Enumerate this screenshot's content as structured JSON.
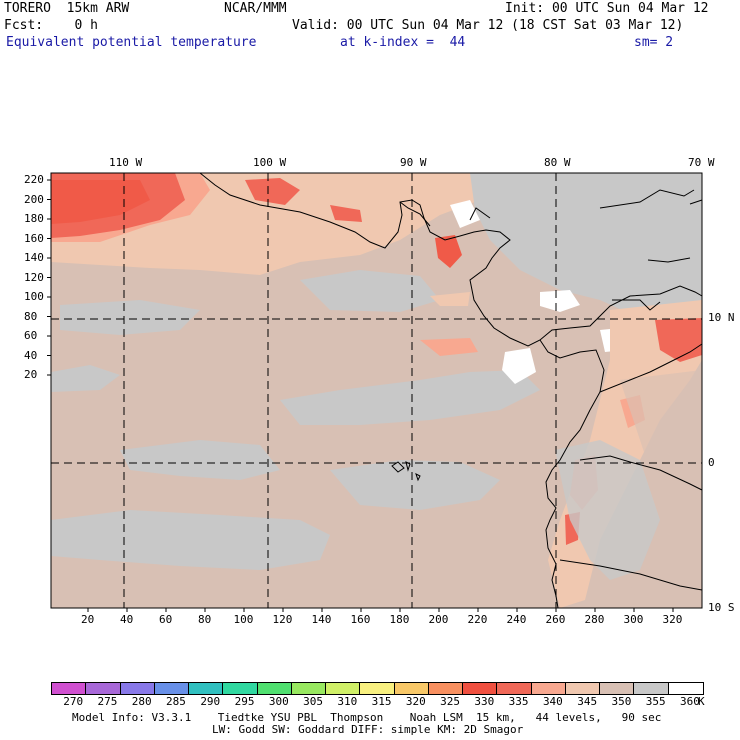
{
  "header": {
    "model": "TORERO  15km ARW",
    "center": "NCAR/MMM",
    "init": "Init: 00 UTC Sun 04 Mar 12",
    "fcst": "Fcst:    0 h",
    "valid": "Valid: 00 UTC Sun 04 Mar 12 (18 CST Sat 03 Mar 12)",
    "field": "Equivalent potential temperature",
    "level": "at k-index =  44",
    "smooth": "sm= 2"
  },
  "map": {
    "lon_labels": [
      "110 W",
      "100 W",
      "90 W",
      "80 W",
      "70 W"
    ],
    "lat_labels": [
      "10 N",
      "0",
      "10 S"
    ],
    "y_ticks": [
      "220",
      "200",
      "180",
      "160",
      "140",
      "120",
      "100",
      "80",
      "60",
      "40",
      "20"
    ],
    "x_ticks": [
      "20",
      "40",
      "60",
      "80",
      "100",
      "120",
      "140",
      "160",
      "180",
      "200",
      "220",
      "240",
      "260",
      "280",
      "300",
      "320"
    ]
  },
  "colorbar": {
    "labels": [
      "270",
      "275",
      "280",
      "285",
      "290",
      "295",
      "300",
      "305",
      "310",
      "315",
      "320",
      "325",
      "330",
      "335",
      "340",
      "345",
      "350",
      "355",
      "360"
    ],
    "unit": "K",
    "colors": [
      "#d050d0",
      "#a868d8",
      "#8878e8",
      "#6890e8",
      "#30c0c0",
      "#30d8a0",
      "#50e070",
      "#98e860",
      "#d0f068",
      "#f8f080",
      "#f8c868",
      "#f89060",
      "#f05040",
      "#f06858",
      "#f8a890",
      "#f0c8b0",
      "#d8c0b4",
      "#c8c8c8",
      "#ffffff"
    ]
  },
  "footer": {
    "line1": "Model Info: V3.3.1    Tiedtke YSU PBL  Thompson    Noah LSM  15 km,   44 levels,   90 sec",
    "line2": "LW: Godd SW: Goddard DIFF: simple KM: 2D Smagor"
  }
}
